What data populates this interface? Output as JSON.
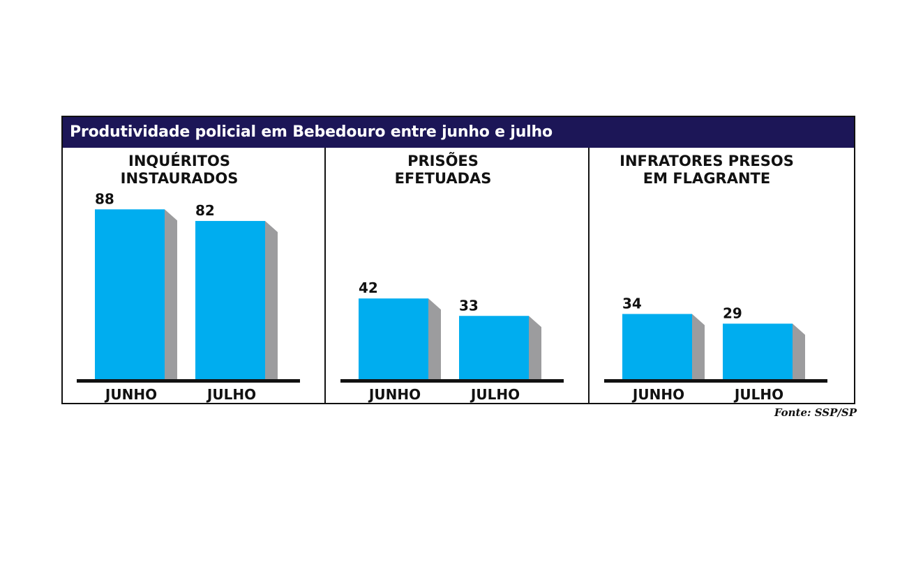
{
  "title": "Produtividade policial em Bebedouro entre junho e julho",
  "source": "Fonte: SSP/SP",
  "colors": {
    "bar": "#00adef",
    "shadow": "#9c9c9e",
    "header": "#1c1657",
    "axis": "#111111"
  },
  "chart_data": [
    {
      "type": "bar",
      "title_lines": [
        "INQUÉRITOS",
        "INSTAURADOS"
      ],
      "categories": [
        "JUNHO",
        "JULHO"
      ],
      "values": [
        88,
        82
      ]
    },
    {
      "type": "bar",
      "title_lines": [
        "PRISÕES",
        "EFETUADAS"
      ],
      "categories": [
        "JUNHO",
        "JULHO"
      ],
      "values": [
        42,
        33
      ]
    },
    {
      "type": "bar",
      "title_lines": [
        "INFRATORES PRESOS",
        "EM FLAGRANTE"
      ],
      "categories": [
        "JUNHO",
        "JULHO"
      ],
      "values": [
        34,
        29
      ]
    }
  ]
}
